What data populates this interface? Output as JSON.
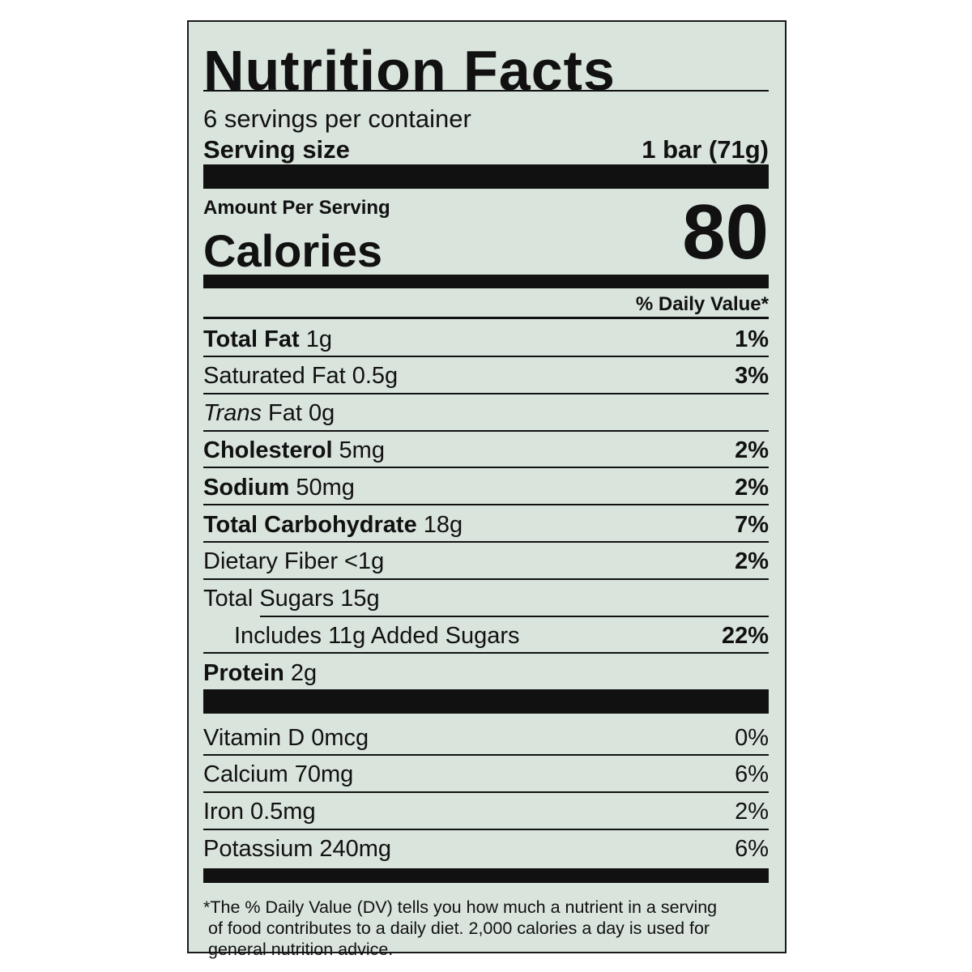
{
  "header": {
    "title": "Nutrition Facts",
    "servings": "6 servings per container",
    "serving_size_label": "Serving size",
    "serving_size_value": "1 bar (71g)"
  },
  "calories": {
    "amount_label": "Amount Per Serving",
    "label": "Calories",
    "value": "80"
  },
  "daily_value_header": "% Daily Value*",
  "nutrients": [
    {
      "name": "Total Fat",
      "detail": "1g",
      "dv": "1%",
      "style": "bold"
    },
    {
      "name": "Saturated Fat",
      "detail": "0.5g",
      "dv": "3%",
      "style": "regular"
    },
    {
      "name": "Trans",
      "detail": "Fat 0g",
      "style": "italic"
    },
    {
      "name": "Cholesterol",
      "detail": "5mg",
      "dv": "2%",
      "style": "bold"
    },
    {
      "name": "Sodium",
      "detail": "50mg",
      "dv": "2%",
      "style": "bold"
    },
    {
      "name": "Total Carbohydrate",
      "detail": "18g",
      "dv": "7%",
      "style": "bold"
    },
    {
      "name": "Dietary Fiber",
      "detail": "<1g",
      "dv": "2%",
      "style": "regular"
    },
    {
      "name": "Total Sugars",
      "detail": "15g",
      "style": "regular"
    },
    {
      "name": "Includes 11g Added Sugars",
      "dv": "22%",
      "style": "indent"
    },
    {
      "name": "Protein",
      "detail": "2g",
      "style": "bold"
    }
  ],
  "vitamins": [
    {
      "name": "Vitamin D",
      "detail": "0mcg",
      "dv": "0%"
    },
    {
      "name": "Calcium",
      "detail": "70mg",
      "dv": "6%"
    },
    {
      "name": "Iron",
      "detail": "0.5mg",
      "dv": "2%"
    },
    {
      "name": "Potassium",
      "detail": "240mg",
      "dv": "6%"
    }
  ],
  "footnote": [
    "*The % Daily Value (DV) tells you how much a nutrient in a serving",
    "of food contributes to a daily diet. 2,000 calories a day is used for",
    "general nutrition advice."
  ]
}
